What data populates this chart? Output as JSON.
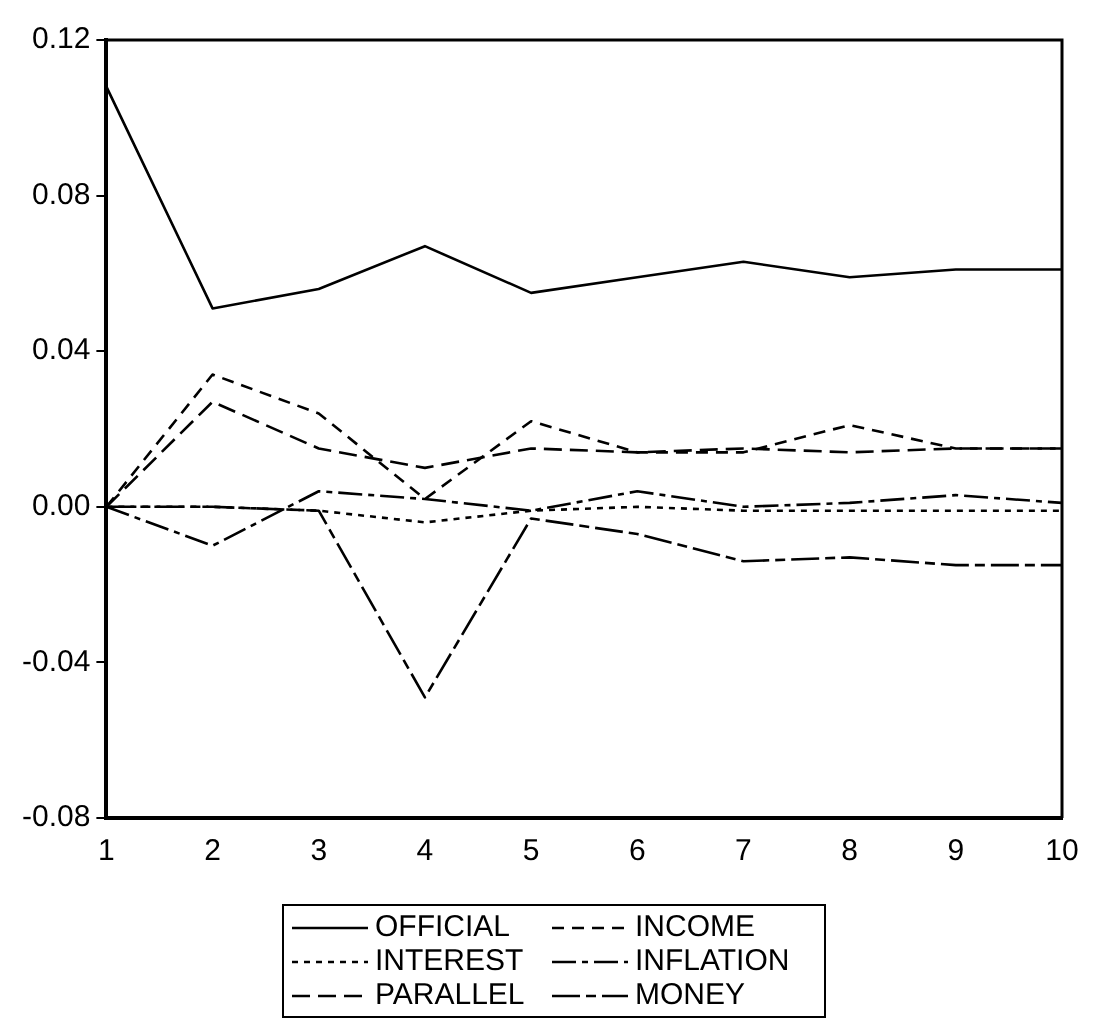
{
  "chart_data": {
    "type": "line",
    "x": [
      1,
      2,
      3,
      4,
      5,
      6,
      7,
      8,
      9,
      10
    ],
    "xlim": [
      1,
      10
    ],
    "xticks": [
      1,
      2,
      3,
      4,
      5,
      6,
      7,
      8,
      9,
      10
    ],
    "ylim": [
      -0.08,
      0.12
    ],
    "yticks": [
      {
        "value": -0.08,
        "label": "-0.08"
      },
      {
        "value": -0.04,
        "label": "-0.04"
      },
      {
        "value": 0,
        "label": "0.00"
      },
      {
        "value": 0.04,
        "label": "0.04"
      },
      {
        "value": 0.08,
        "label": "0.08"
      },
      {
        "value": 0.12,
        "label": "0.12"
      }
    ],
    "grid": false,
    "legend": "bottom",
    "marker": "none",
    "series": [
      {
        "name": "OFFICIAL",
        "color": "#000000",
        "line_style": "solid",
        "values": [
          0.108,
          0.051,
          0.056,
          0.067,
          0.055,
          0.059,
          0.063,
          0.059,
          0.061,
          0.061
        ]
      },
      {
        "name": "INCOME",
        "color": "#000000",
        "line_style": "dashed",
        "values": [
          0,
          0.034,
          0.024,
          0.002,
          0.022,
          0.014,
          0.014,
          0.021,
          0.015,
          0.015
        ]
      },
      {
        "name": "INTEREST",
        "color": "#000000",
        "line_style": "dashed",
        "values": [
          0,
          0,
          -0.001,
          -0.004,
          -0.001,
          0,
          -0.001,
          -0.001,
          -0.001,
          -0.001
        ]
      },
      {
        "name": "INFLATION",
        "color": "#000000",
        "line_style": "dashed",
        "values": [
          0,
          -0.01,
          0.004,
          0.002,
          -0.001,
          0.004,
          0,
          0.001,
          0.003,
          0.001
        ]
      },
      {
        "name": "PARALLEL",
        "color": "#000000",
        "line_style": "dashed",
        "values": [
          0,
          0.027,
          0.015,
          0.01,
          0.015,
          0.014,
          0.015,
          0.014,
          0.015,
          0.015
        ]
      },
      {
        "name": "MONEY",
        "color": "#000000",
        "line_style": "dashed",
        "values": [
          0,
          0,
          -0.001,
          -0.049,
          -0.003,
          -0.007,
          -0.014,
          -0.013,
          -0.015,
          -0.015
        ]
      }
    ]
  }
}
